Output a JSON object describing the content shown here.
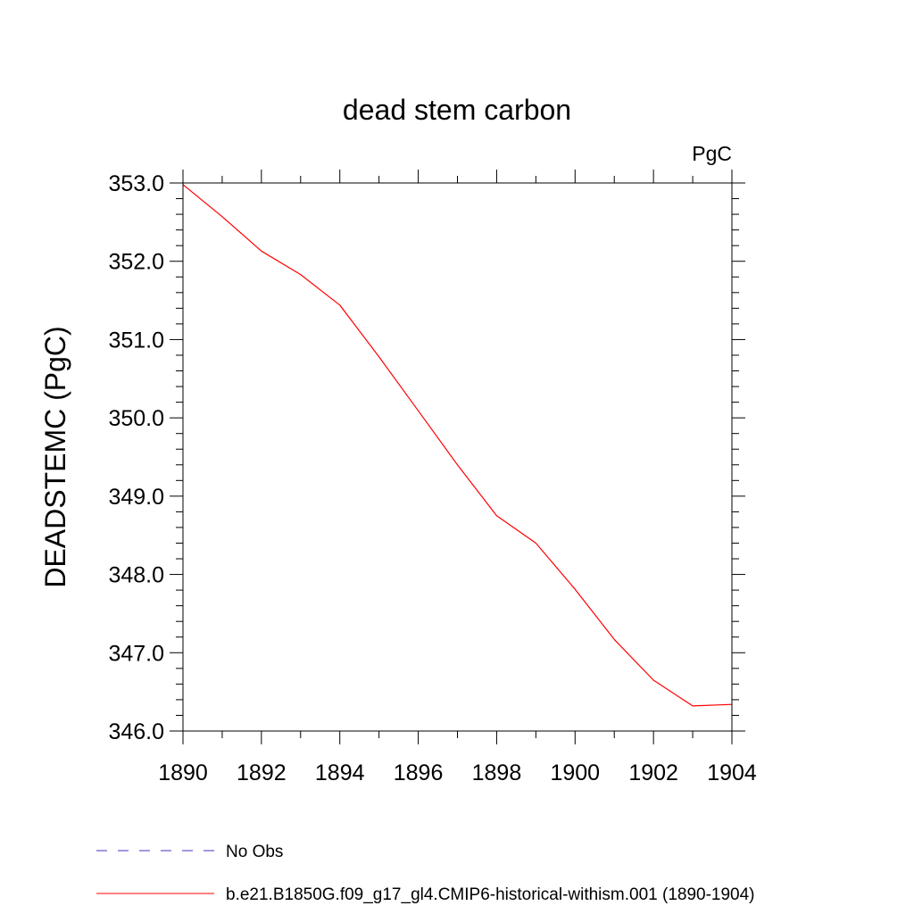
{
  "chart_data": {
    "type": "line",
    "title": "dead stem carbon",
    "units_label": "PgC",
    "xlabel": "",
    "ylabel": "DEADSTEMC  (PgC)",
    "xlim": [
      1890,
      1904
    ],
    "ylim": [
      346.0,
      353.0
    ],
    "x_ticks": [
      1890,
      1892,
      1894,
      1896,
      1898,
      1900,
      1902,
      1904
    ],
    "y_ticks": [
      "346.0",
      "347.0",
      "348.0",
      "349.0",
      "350.0",
      "351.0",
      "352.0",
      "353.0"
    ],
    "grid": false,
    "series": [
      {
        "name": "b.e21.B1850G.f09_g17_gl4.CMIP6-historical-withism.001 (1890-1904)",
        "color": "#ff0000",
        "x": [
          1890,
          1891,
          1892,
          1893,
          1894,
          1895,
          1896,
          1897,
          1898,
          1899,
          1900,
          1901,
          1902,
          1903,
          1904
        ],
        "values": [
          352.98,
          352.57,
          352.13,
          351.83,
          351.44,
          350.78,
          350.09,
          349.4,
          348.75,
          348.4,
          347.81,
          347.17,
          346.65,
          346.32,
          346.34
        ]
      }
    ],
    "legend": {
      "placement": "bottom-left",
      "entries": [
        {
          "label": "No Obs",
          "color": "#6a5acd",
          "style": "dashed"
        },
        {
          "label": "b.e21.B1850G.f09_g17_gl4.CMIP6-historical-withism.001 (1890-1904)",
          "color": "#ff0000",
          "style": "solid"
        }
      ]
    }
  }
}
